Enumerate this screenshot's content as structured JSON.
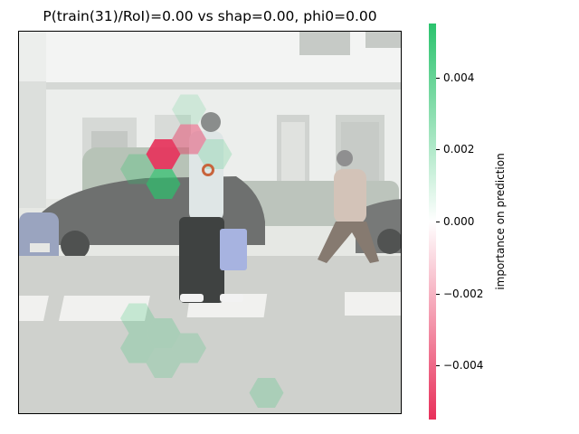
{
  "chart_data": {
    "type": "heatmap",
    "title": "P(train(31)/RoI)=0.00 vs shap=0.00, phi0=0.00",
    "colorbar": {
      "label": "importance on prediction",
      "vmin": -0.0055,
      "vmax": 0.0055,
      "ticks": [
        0.004,
        0.002,
        0.0,
        -0.002,
        -0.004
      ],
      "tick_labels": [
        "0.004",
        "0.002",
        "0.000",
        "−0.002",
        "−0.004"
      ],
      "color_negative": "#e8305a",
      "color_zero": "#ffffff",
      "color_positive": "#2bc36d"
    },
    "background_image": "street scene with pedestrians walking on a zebra crossing, cars parked in front of a white building (desaturated)",
    "hexagon_cells": [
      {
        "col": 6,
        "row": 2,
        "value": 0.0005
      },
      {
        "col": 5,
        "row": 3,
        "value": -0.0052
      },
      {
        "col": 6,
        "row": 3,
        "value": -0.0022
      },
      {
        "col": 7,
        "row": 3,
        "value": 0.0008
      },
      {
        "col": 4,
        "row": 4,
        "value": 0.0012
      },
      {
        "col": 5,
        "row": 4,
        "value": 0.0036
      },
      {
        "col": 4,
        "row": 9,
        "value": 0.0009
      },
      {
        "col": 5,
        "row": 9,
        "value": 0.0009
      },
      {
        "col": 4,
        "row": 10,
        "value": 0.0009
      },
      {
        "col": 5,
        "row": 10,
        "value": 0.0008
      },
      {
        "col": 6,
        "row": 10,
        "value": 0.0008
      },
      {
        "col": 9,
        "row": 11,
        "value": 0.0009
      }
    ],
    "roi_marker": {
      "shape": "ring",
      "color": "#c8643c"
    }
  }
}
